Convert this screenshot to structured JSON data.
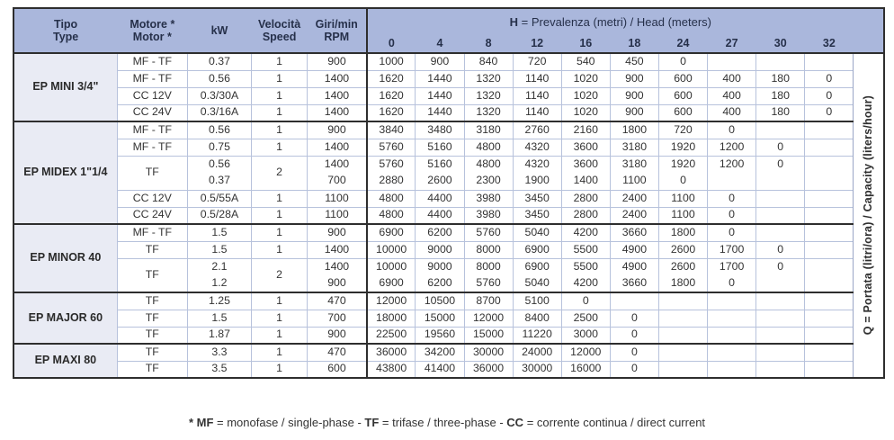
{
  "colors": {
    "header_bg": "#aab7dc",
    "group_column_bg": "#e9ebf4",
    "grid_line": "#b7c2dc",
    "dark_border": "#2e2e2e",
    "text": "#333333"
  },
  "table": {
    "headers": {
      "tipo": {
        "l1": "Tipo",
        "l2": "Type"
      },
      "motore": {
        "l1": "Motore *",
        "l2": "Motor *"
      },
      "kw": "kW",
      "velocita": {
        "l1": "Velocità",
        "l2": "Speed"
      },
      "giri": {
        "l1": "Giri/min",
        "l2": "RPM"
      },
      "head_bold": "H",
      "head_rest": " = Prevalenza (metri) / Head (meters)",
      "head_values": [
        "0",
        "4",
        "8",
        "12",
        "16",
        "18",
        "24",
        "27",
        "30",
        "32"
      ]
    },
    "side_label": {
      "bold": "Q",
      "rest": " = Portata (litri/ora) / Capacity (liters/hour)"
    },
    "footnote": [
      {
        "t": "* MF",
        "b": 1
      },
      {
        "t": " = monofase / single-phase - ",
        "b": 0
      },
      {
        "t": "TF",
        "b": 1
      },
      {
        "t": " = trifase / three-phase - ",
        "b": 0
      },
      {
        "t": "CC",
        "b": 1
      },
      {
        "t": " = corrente continua / direct current",
        "b": 0
      }
    ],
    "groups": [
      {
        "name": "EP MINI 3/4\"",
        "rows": [
          {
            "motor": "MF - TF",
            "kw": [
              "0.37"
            ],
            "speed": "1",
            "rpm": [
              "900"
            ],
            "data": [
              [
                "1000",
                "900",
                "840",
                "720",
                "540",
                "450",
                "0",
                "",
                "",
                ""
              ]
            ]
          },
          {
            "motor": "MF - TF",
            "kw": [
              "0.56"
            ],
            "speed": "1",
            "rpm": [
              "1400"
            ],
            "data": [
              [
                "1620",
                "1440",
                "1320",
                "1140",
                "1020",
                "900",
                "600",
                "400",
                "180",
                "0"
              ]
            ]
          },
          {
            "motor": "CC 12V",
            "kw": [
              "0.3/30A"
            ],
            "speed": "1",
            "rpm": [
              "1400"
            ],
            "data": [
              [
                "1620",
                "1440",
                "1320",
                "1140",
                "1020",
                "900",
                "600",
                "400",
                "180",
                "0"
              ]
            ]
          },
          {
            "motor": "CC 24V",
            "kw": [
              "0.3/16A"
            ],
            "speed": "1",
            "rpm": [
              "1400"
            ],
            "data": [
              [
                "1620",
                "1440",
                "1320",
                "1140",
                "1020",
                "900",
                "600",
                "400",
                "180",
                "0"
              ]
            ]
          }
        ]
      },
      {
        "name": "EP MIDEX 1\"1/4",
        "rows": [
          {
            "motor": "MF - TF",
            "kw": [
              "0.56"
            ],
            "speed": "1",
            "rpm": [
              "900"
            ],
            "data": [
              [
                "3840",
                "3480",
                "3180",
                "2760",
                "2160",
                "1800",
                "720",
                "0",
                "",
                ""
              ]
            ]
          },
          {
            "motor": "MF - TF",
            "kw": [
              "0.75"
            ],
            "speed": "1",
            "rpm": [
              "1400"
            ],
            "data": [
              [
                "5760",
                "5160",
                "4800",
                "4320",
                "3600",
                "3180",
                "1920",
                "1200",
                "0",
                ""
              ]
            ]
          },
          {
            "motor": "TF",
            "kw": [
              "0.56",
              "0.37"
            ],
            "speed": "2",
            "rpm": [
              "1400",
              "700"
            ],
            "data": [
              [
                "5760",
                "5160",
                "4800",
                "4320",
                "3600",
                "3180",
                "1920",
                "1200",
                "0",
                ""
              ],
              [
                "2880",
                "2600",
                "2300",
                "1900",
                "1400",
                "1100",
                "0",
                "",
                "",
                ""
              ]
            ]
          },
          {
            "motor": "CC 12V",
            "kw": [
              "0.5/55A"
            ],
            "speed": "1",
            "rpm": [
              "1100"
            ],
            "data": [
              [
                "4800",
                "4400",
                "3980",
                "3450",
                "2800",
                "2400",
                "1100",
                "0",
                "",
                ""
              ]
            ]
          },
          {
            "motor": "CC 24V",
            "kw": [
              "0.5/28A"
            ],
            "speed": "1",
            "rpm": [
              "1100"
            ],
            "data": [
              [
                "4800",
                "4400",
                "3980",
                "3450",
                "2800",
                "2400",
                "1100",
                "0",
                "",
                ""
              ]
            ]
          }
        ]
      },
      {
        "name": "EP MINOR 40",
        "rows": [
          {
            "motor": "MF - TF",
            "kw": [
              "1.5"
            ],
            "speed": "1",
            "rpm": [
              "900"
            ],
            "data": [
              [
                "6900",
                "6200",
                "5760",
                "5040",
                "4200",
                "3660",
                "1800",
                "0",
                "",
                ""
              ]
            ]
          },
          {
            "motor": "TF",
            "kw": [
              "1.5"
            ],
            "speed": "1",
            "rpm": [
              "1400"
            ],
            "data": [
              [
                "10000",
                "9000",
                "8000",
                "6900",
                "5500",
                "4900",
                "2600",
                "1700",
                "0",
                ""
              ]
            ]
          },
          {
            "motor": "TF",
            "kw": [
              "2.1",
              "1.2"
            ],
            "speed": "2",
            "rpm": [
              "1400",
              "900"
            ],
            "data": [
              [
                "10000",
                "9000",
                "8000",
                "6900",
                "5500",
                "4900",
                "2600",
                "1700",
                "0",
                ""
              ],
              [
                "6900",
                "6200",
                "5760",
                "5040",
                "4200",
                "3660",
                "1800",
                "0",
                "",
                ""
              ]
            ]
          }
        ]
      },
      {
        "name": "EP MAJOR 60",
        "rows": [
          {
            "motor": "TF",
            "kw": [
              "1.25"
            ],
            "speed": "1",
            "rpm": [
              "470"
            ],
            "data": [
              [
                "12000",
                "10500",
                "8700",
                "5100",
                "0",
                "",
                "",
                "",
                "",
                ""
              ]
            ]
          },
          {
            "motor": "TF",
            "kw": [
              "1.5"
            ],
            "speed": "1",
            "rpm": [
              "700"
            ],
            "data": [
              [
                "18000",
                "15000",
                "12000",
                "8400",
                "2500",
                "0",
                "",
                "",
                "",
                ""
              ]
            ]
          },
          {
            "motor": "TF",
            "kw": [
              "1.87"
            ],
            "speed": "1",
            "rpm": [
              "900"
            ],
            "data": [
              [
                "22500",
                "19560",
                "15000",
                "11220",
                "3000",
                "0",
                "",
                "",
                "",
                ""
              ]
            ]
          }
        ]
      },
      {
        "name": "EP MAXI 80",
        "rows": [
          {
            "motor": "TF",
            "kw": [
              "3.3"
            ],
            "speed": "1",
            "rpm": [
              "470"
            ],
            "data": [
              [
                "36000",
                "34200",
                "30000",
                "24000",
                "12000",
                "0",
                "",
                "",
                "",
                ""
              ]
            ]
          },
          {
            "motor": "TF",
            "kw": [
              "3.5"
            ],
            "speed": "1",
            "rpm": [
              "600"
            ],
            "data": [
              [
                "43800",
                "41400",
                "36000",
                "30000",
                "16000",
                "0",
                "",
                "",
                "",
                ""
              ]
            ]
          }
        ]
      }
    ]
  }
}
